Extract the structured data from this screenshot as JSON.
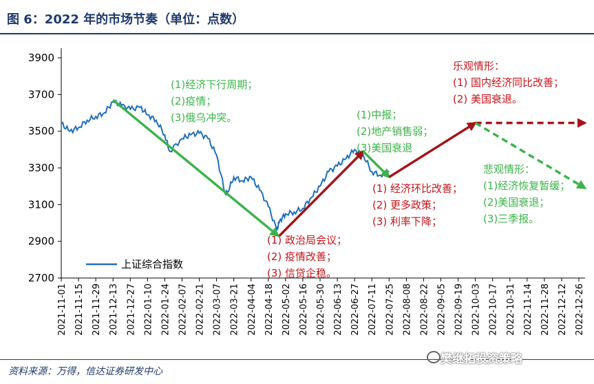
{
  "title": "图 6：2022 年的市场节奏（单位：点数）",
  "source": "资料来源：万得，信达证券研发中心",
  "watermark": "樊继拓投资策略",
  "colors": {
    "index_line": "#1f6fb8",
    "down": "#3cb34a",
    "up": "#a3151b",
    "green_text": "#3cb34a",
    "red_text": "#c0151b"
  },
  "chart_data": {
    "type": "line",
    "title": "",
    "xlabel": "",
    "ylabel": "",
    "ylim": [
      2700,
      3900
    ],
    "yticks": [
      2700,
      2900,
      3100,
      3300,
      3500,
      3700,
      3900
    ],
    "xticks": [
      "2021-11-01",
      "2021-11-15",
      "2021-11-29",
      "2021-12-13",
      "2021-12-27",
      "2022-01-10",
      "2022-01-24",
      "2022-02-07",
      "2022-02-21",
      "2022-03-07",
      "2022-03-21",
      "2022-04-04",
      "2022-04-18",
      "2022-05-02",
      "2022-05-16",
      "2022-05-30",
      "2022-06-13",
      "2022-06-27",
      "2022-07-11",
      "2022-07-25",
      "2022-08-08",
      "2022-08-22",
      "2022-09-05",
      "2022-09-19",
      "2022-10-03",
      "2022-10-17",
      "2022-10-31",
      "2022-11-14",
      "2022-11-28",
      "2022-12-12",
      "2022-12-26"
    ],
    "legend": {
      "position": "bottom-left",
      "entries": [
        "上证综合指数"
      ]
    },
    "series": [
      {
        "name": "上证综合指数",
        "x": [
          "2021-11-01",
          "2021-11-08",
          "2021-11-15",
          "2021-11-22",
          "2021-11-29",
          "2021-12-06",
          "2021-12-13",
          "2021-12-20",
          "2021-12-27",
          "2022-01-04",
          "2022-01-10",
          "2022-01-17",
          "2022-01-24",
          "2022-01-28",
          "2022-02-07",
          "2022-02-14",
          "2022-02-21",
          "2022-02-28",
          "2022-03-07",
          "2022-03-14",
          "2022-03-16",
          "2022-03-21",
          "2022-03-28",
          "2022-04-04",
          "2022-04-11",
          "2022-04-18",
          "2022-04-25",
          "2022-04-27",
          "2022-05-02",
          "2022-05-09",
          "2022-05-16",
          "2022-05-23",
          "2022-05-30",
          "2022-06-06",
          "2022-06-13",
          "2022-06-20",
          "2022-06-27",
          "2022-07-04",
          "2022-07-11",
          "2022-07-18",
          "2022-07-25"
        ],
        "values": [
          3540,
          3500,
          3520,
          3560,
          3580,
          3600,
          3660,
          3640,
          3620,
          3630,
          3590,
          3560,
          3480,
          3390,
          3460,
          3480,
          3490,
          3460,
          3370,
          3160,
          3170,
          3250,
          3230,
          3250,
          3180,
          3090,
          2960,
          3010,
          3050,
          3060,
          3080,
          3140,
          3200,
          3280,
          3310,
          3350,
          3400,
          3370,
          3280,
          3260,
          3280
        ]
      }
    ],
    "arrows": [
      {
        "color": "green",
        "from": [
          "2021-12-13",
          3670
        ],
        "to": [
          "2022-04-26",
          2930
        ]
      },
      {
        "color": "red",
        "from": [
          "2022-04-27",
          2930
        ],
        "to": [
          "2022-07-04",
          3390
        ]
      },
      {
        "color": "green",
        "from": [
          "2022-07-04",
          3390
        ],
        "to": [
          "2022-07-25",
          3250
        ]
      },
      {
        "color": "red",
        "from": [
          "2022-07-25",
          3250
        ],
        "to": [
          "2022-10-03",
          3545
        ]
      },
      {
        "color": "red",
        "dashed": true,
        "from": [
          "2022-10-03",
          3545
        ],
        "to": [
          "2022-12-31",
          3545
        ]
      },
      {
        "color": "green",
        "dashed": true,
        "from": [
          "2022-10-03",
          3545
        ],
        "to": [
          "2022-12-31",
          3190
        ]
      }
    ],
    "annotations": [
      {
        "color": "green",
        "lines": [
          "(1)经济下行周期；",
          "(2)疫情；",
          "(3)俄乌冲突。"
        ]
      },
      {
        "color": "red",
        "lines": [
          "(1) 政治局会议；",
          "(2) 疫情改善；",
          "(3) 信贷企稳。"
        ]
      },
      {
        "color": "green",
        "lines": [
          "(1)中报；",
          "(2)地产销售弱；",
          "(3)美国衰退"
        ]
      },
      {
        "color": "red",
        "lines": [
          "(1) 经济环比改善；",
          "(2) 更多政策；",
          "(3) 利率下降；"
        ]
      },
      {
        "color": "red",
        "lines": [
          "乐观情形：",
          "(1) 国内经济同比改善；",
          "(2) 美国衰退。"
        ]
      },
      {
        "color": "green",
        "lines": [
          "悲观情形：",
          "(1)经济恢复暂缓；",
          "(2)美国衰退；",
          "(3)三季报。"
        ]
      }
    ]
  }
}
